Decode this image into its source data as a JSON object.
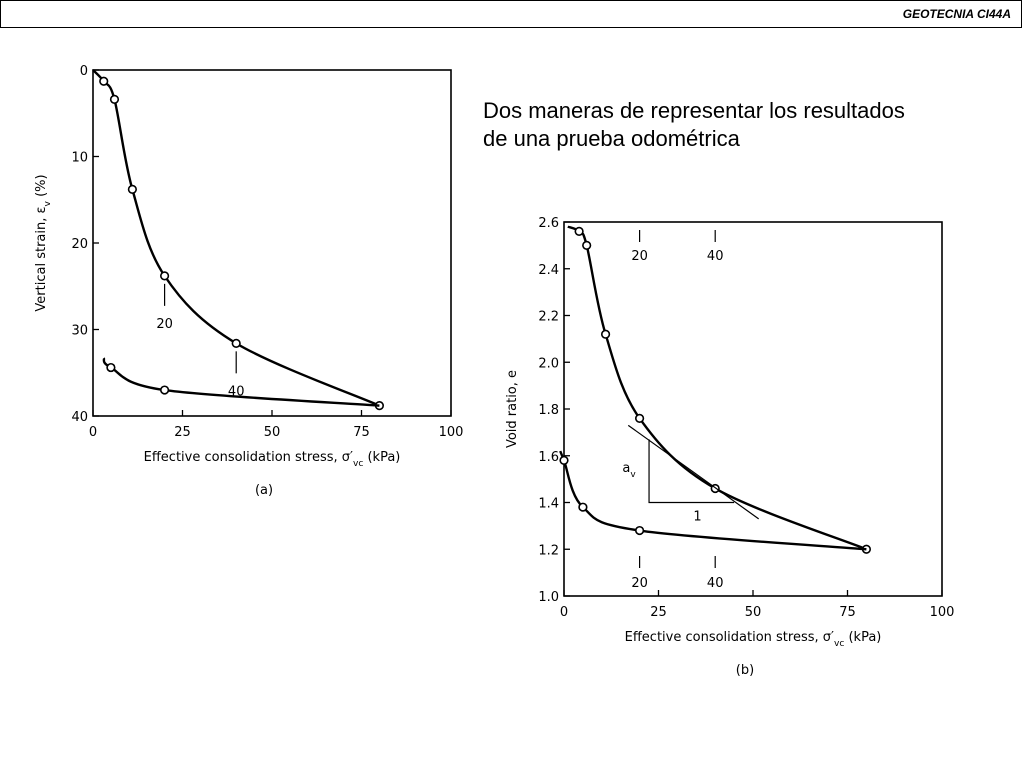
{
  "header": {
    "course_label": "GEOTECNIA CI44A"
  },
  "slide": {
    "title_line1": "Dos maneras de representar los resultados",
    "title_line2": "de una prueba odométrica"
  },
  "chart_data": [
    {
      "type": "line",
      "panel_label": "(a)",
      "xlabel": "Effective consolidation stress, σ′vc (kPa)",
      "ylabel": "Vertical strain, εv (%)",
      "xlim": [
        0,
        100
      ],
      "ylim": [
        0,
        40
      ],
      "y_inverted": true,
      "x_ticks": [
        0,
        25,
        50,
        75,
        100
      ],
      "y_ticks": [
        0,
        10,
        20,
        30,
        40
      ],
      "grid": false,
      "series": [
        {
          "role": "loading",
          "x": [
            0,
            3,
            6,
            11,
            20,
            40,
            80
          ],
          "y": [
            0,
            1.3,
            3.4,
            13.8,
            23.8,
            31.6,
            38.8
          ]
        },
        {
          "role": "unloading",
          "x": [
            80,
            20,
            5,
            3
          ],
          "y": [
            38.8,
            37,
            34.4,
            33.3
          ]
        }
      ],
      "annotations": [
        {
          "text": "20",
          "x": 20,
          "y": 23.8
        },
        {
          "text": "40",
          "x": 40,
          "y": 31.6
        }
      ]
    },
    {
      "type": "line",
      "panel_label": "(b)",
      "xlabel": "Effective consolidation stress, σ′vc (kPa)",
      "ylabel": "Void ratio, e",
      "xlim": [
        0,
        100
      ],
      "ylim": [
        1.0,
        2.6
      ],
      "x_ticks": [
        0,
        25,
        50,
        75,
        100
      ],
      "y_ticks": [
        1.0,
        1.2,
        1.4,
        1.6,
        1.8,
        2.0,
        2.2,
        2.4,
        2.6
      ],
      "grid": false,
      "series": [
        {
          "role": "loading",
          "x": [
            1,
            4,
            6,
            11,
            20,
            40,
            80
          ],
          "y": [
            2.58,
            2.56,
            2.5,
            2.12,
            1.76,
            1.46,
            1.2
          ]
        },
        {
          "role": "unloading",
          "x": [
            80,
            20,
            5,
            0,
            -1
          ],
          "y": [
            1.2,
            1.28,
            1.38,
            1.58,
            1.62
          ]
        }
      ],
      "annotations": [
        {
          "text": "20",
          "x": 20,
          "position": "top"
        },
        {
          "text": "40",
          "x": 40,
          "position": "top"
        },
        {
          "text": "20",
          "x": 20,
          "position": "bottom"
        },
        {
          "text": "40",
          "x": 40,
          "position": "bottom"
        },
        {
          "text": "a",
          "subscript": "v",
          "kind": "tangent slope height"
        },
        {
          "text": "1",
          "kind": "tangent slope run"
        }
      ]
    }
  ]
}
